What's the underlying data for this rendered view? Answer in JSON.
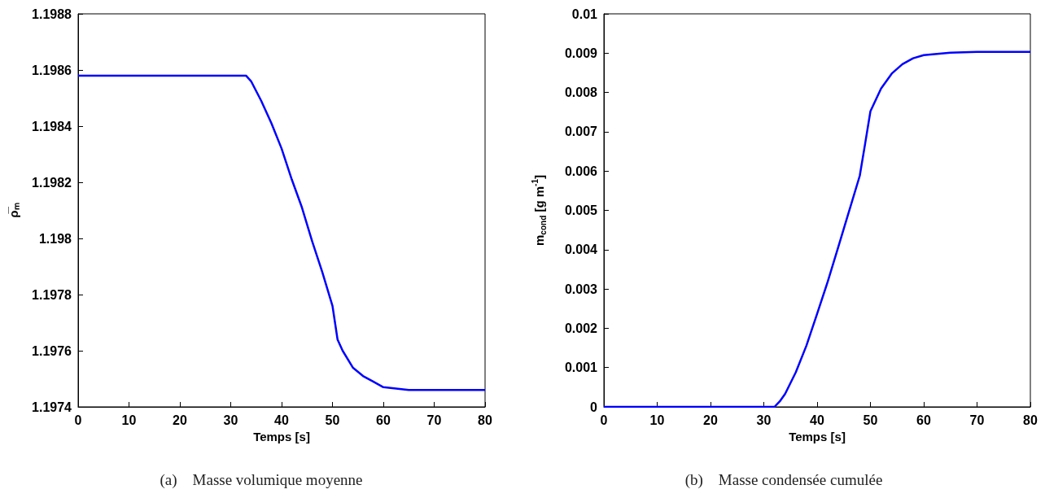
{
  "chart_data": [
    {
      "type": "line",
      "title": "(a)    Masse volumique moyenne",
      "xlabel": "Temps [s]",
      "ylabel": "ρ̅ₘ",
      "color": "#0000ff",
      "grid": false,
      "x": [
        0,
        10,
        20,
        30,
        33,
        34,
        36,
        38,
        40,
        42,
        44,
        46,
        48,
        50,
        51,
        52,
        54,
        56,
        58,
        60,
        65,
        70,
        80
      ],
      "values": [
        1.19858,
        1.19858,
        1.19858,
        1.19858,
        1.19858,
        1.19856,
        1.19849,
        1.19841,
        1.19832,
        1.19821,
        1.19811,
        1.19799,
        1.19788,
        1.19776,
        1.19764,
        1.1976,
        1.19754,
        1.19751,
        1.19749,
        1.19747,
        1.19746,
        1.19746,
        1.19746
      ],
      "xlim": [
        0,
        80
      ],
      "xticks": [
        0,
        10,
        20,
        30,
        40,
        50,
        60,
        70,
        80
      ],
      "ylim": [
        1.1974,
        1.1988
      ],
      "yticks": [
        1.1974,
        1.1976,
        1.1978,
        1.198,
        1.1982,
        1.1984,
        1.1986,
        1.1988
      ]
    },
    {
      "type": "line",
      "title": "(b)    Masse condensée cumulée",
      "xlabel": "Temps [s]",
      "ylabel": "m$_{cond}$ [g m$^{-1}$]",
      "color": "#0000ff",
      "grid": false,
      "x": [
        0,
        10,
        20,
        30,
        32,
        33,
        34,
        36,
        38,
        40,
        42,
        44,
        46,
        48,
        49,
        50,
        52,
        54,
        56,
        58,
        60,
        65,
        70,
        80
      ],
      "values": [
        0,
        0,
        0,
        0,
        0,
        0.00014,
        0.00033,
        0.00088,
        0.00156,
        0.00237,
        0.00319,
        0.00408,
        0.00498,
        0.00588,
        0.00669,
        0.00752,
        0.0081,
        0.00848,
        0.00872,
        0.00887,
        0.00895,
        0.00901,
        0.00903,
        0.00903
      ],
      "xlim": [
        0,
        80
      ],
      "xticks": [
        0,
        10,
        20,
        30,
        40,
        50,
        60,
        70,
        80
      ],
      "ylim": [
        0,
        0.01
      ],
      "yticks": [
        0,
        0.001,
        0.002,
        0.003,
        0.004,
        0.005,
        0.006,
        0.007,
        0.008,
        0.009,
        0.01
      ]
    }
  ]
}
